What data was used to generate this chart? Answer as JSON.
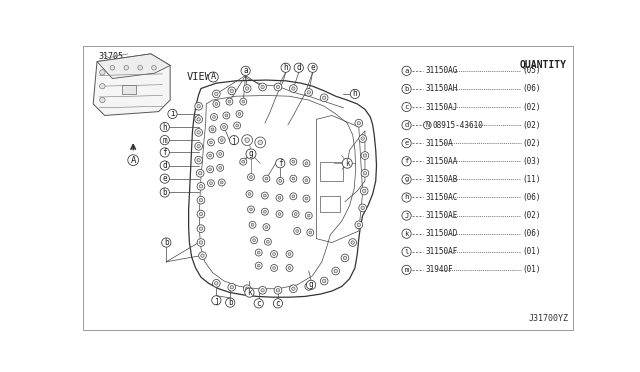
{
  "bg_color": "#ffffff",
  "diagram_code": "J31700YZ",
  "quantity_title": "QUANTITY",
  "legend_items": [
    {
      "letter": "a",
      "part": "31150AG",
      "qty": "05"
    },
    {
      "letter": "b",
      "part": "31150AH",
      "qty": "06"
    },
    {
      "letter": "c",
      "part": "31150AJ",
      "qty": "02"
    },
    {
      "letter": "d",
      "part": "08915-43610",
      "qty": "02",
      "extra_circle": "N"
    },
    {
      "letter": "e",
      "part": "31150A",
      "qty": "02"
    },
    {
      "letter": "f",
      "part": "31150AA",
      "qty": "03"
    },
    {
      "letter": "g",
      "part": "31150AB",
      "qty": "11"
    },
    {
      "letter": "h",
      "part": "31150AC",
      "qty": "06"
    },
    {
      "letter": "J",
      "part": "31150AE",
      "qty": "02"
    },
    {
      "letter": "k",
      "part": "31150AD",
      "qty": "06"
    },
    {
      "letter": "l",
      "part": "31150AF",
      "qty": "01"
    },
    {
      "letter": "m",
      "part": "31940F",
      "qty": "01"
    }
  ],
  "line_color": "#444444",
  "lw": 0.55
}
